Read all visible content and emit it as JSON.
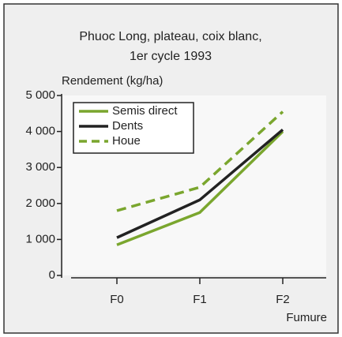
{
  "chart_data": {
    "type": "line",
    "title": [
      "Phuoc Long, plateau, coix blanc,",
      "1er cycle 1993"
    ],
    "y_axis_label": "Rendement (kg/ha)",
    "x_axis_label": "Fumure",
    "categories": [
      "F0",
      "F1",
      "F2"
    ],
    "series": [
      {
        "name": "Semis direct",
        "color": "#7aa62e",
        "dashed": false,
        "values": [
          850,
          1750,
          4000
        ]
      },
      {
        "name": "Dents",
        "color": "#222222",
        "dashed": false,
        "values": [
          1050,
          2100,
          4050
        ]
      },
      {
        "name": "Houe",
        "color": "#7aa62e",
        "dashed": true,
        "values": [
          1800,
          2450,
          4550
        ]
      }
    ],
    "ylim": [
      0,
      5000
    ],
    "yticks": [
      0,
      {
        "value": 1000,
        "label": "1 000"
      },
      {
        "value": 2000,
        "label": "2 000"
      },
      {
        "value": 3000,
        "label": "3 000"
      },
      {
        "value": 4000,
        "label": "4 000"
      },
      {
        "value": 5000,
        "label": "5 000"
      }
    ],
    "legend": "top-left"
  }
}
